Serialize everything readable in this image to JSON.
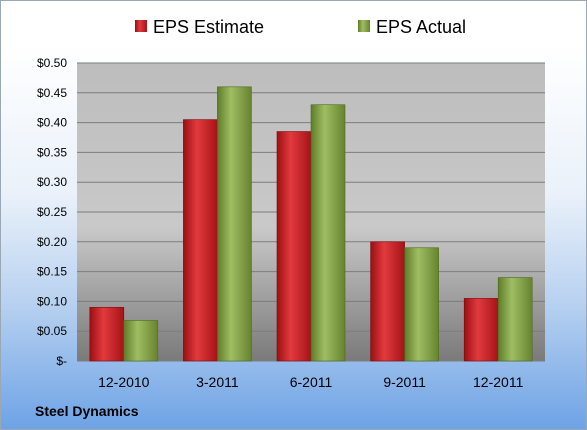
{
  "company": "Steel Dynamics",
  "chart_data": {
    "type": "bar",
    "categories": [
      "12-2010",
      "3-2011",
      "6-2011",
      "9-2011",
      "12-2011"
    ],
    "series": [
      {
        "name": "EPS Estimate",
        "color": "#c8191d",
        "values": [
          0.09,
          0.405,
          0.385,
          0.2,
          0.105
        ]
      },
      {
        "name": "EPS Actual",
        "color": "#7f9f3f",
        "values": [
          0.068,
          0.46,
          0.43,
          0.19,
          0.14
        ]
      }
    ],
    "ylim": [
      0,
      0.5
    ],
    "yticks": [
      0,
      0.05,
      0.1,
      0.15,
      0.2,
      0.25,
      0.3,
      0.35,
      0.4,
      0.45,
      0.5
    ],
    "ytick_labels": [
      "$-",
      "$0.05",
      "$0.10",
      "$0.15",
      "$0.20",
      "$0.25",
      "$0.30",
      "$0.35",
      "$0.40",
      "$0.45",
      "$0.50"
    ],
    "legend_position": "top",
    "grid": true
  }
}
